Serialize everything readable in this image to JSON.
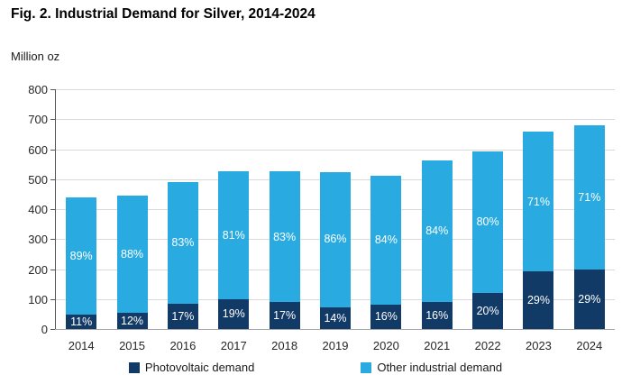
{
  "chart_data": {
    "type": "bar",
    "stacked": true,
    "title": "Fig. 2. Industrial Demand for Silver, 2014-2024",
    "ylabel": "Million oz",
    "ylim": [
      0,
      800
    ],
    "ytick_step": 100,
    "ytick_labels": [
      "0",
      "100",
      "200",
      "300",
      "400",
      "500",
      "600",
      "700",
      "800"
    ],
    "grid": true,
    "legend_position": "bottom",
    "categories": [
      "2014",
      "2015",
      "2016",
      "2017",
      "2018",
      "2019",
      "2020",
      "2021",
      "2022",
      "2023",
      "2024"
    ],
    "totals": [
      440,
      444,
      490,
      527,
      525,
      524,
      511,
      563,
      593,
      658,
      680
    ],
    "series": [
      {
        "name": "Photovoltaic demand",
        "color": "#123a66",
        "values": [
          48,
          53,
          83,
          100,
          89,
          73,
          82,
          90,
          119,
          191,
          197
        ],
        "pct_labels": [
          "11%",
          "12%",
          "17%",
          "19%",
          "17%",
          "14%",
          "16%",
          "16%",
          "20%",
          "29%",
          "29%"
        ]
      },
      {
        "name": "Other industrial demand",
        "color": "#29abe2",
        "values": [
          392,
          391,
          407,
          427,
          436,
          451,
          429,
          473,
          474,
          467,
          483
        ],
        "pct_labels": [
          "89%",
          "88%",
          "83%",
          "81%",
          "83%",
          "86%",
          "84%",
          "84%",
          "80%",
          "71%",
          "71%"
        ]
      }
    ],
    "colors": {
      "grid": "#d9d9d9",
      "y_axis_line": "#595959",
      "x_axis_line": "#a6a6a6",
      "bar_label": "#ffffff",
      "axis_text": "#262626"
    }
  }
}
